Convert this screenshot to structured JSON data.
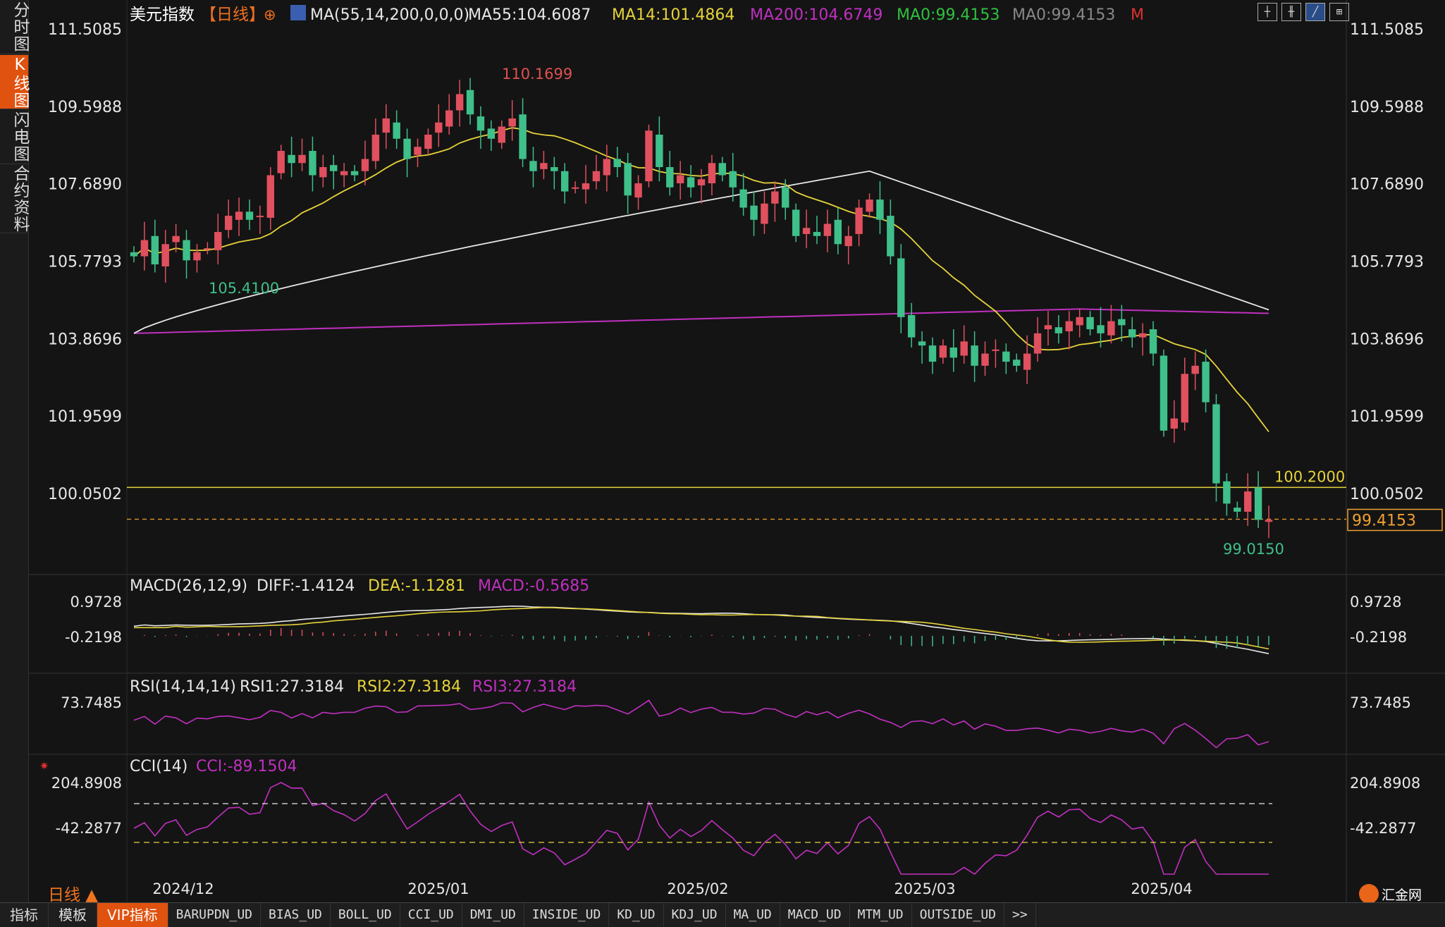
{
  "sidebar": {
    "tabs": [
      "分时图",
      "K线图",
      "闪电图",
      "合约资料"
    ],
    "active": 1
  },
  "header": {
    "name": "美元指数",
    "period_tag": "【日线】",
    "ma_spec": "MA(55,14,200,0,0,0)",
    "ma55": "MA55:104.6087",
    "ma14": "MA14:101.4864",
    "ma200": "MA200:104.6749",
    "ma0a": "MA0:99.4153",
    "ma0b": "MA0:99.4153",
    "m_label": "M"
  },
  "macd_header": {
    "label": "MACD(26,12,9)",
    "diff": "DIFF:-1.4124",
    "dea": "DEA:-1.1281",
    "macd": "MACD:-0.5685"
  },
  "rsi_header": {
    "label": "RSI(14,14,14)",
    "rsi1": "RSI1:27.3184",
    "rsi2": "RSI2:27.3184",
    "rsi3": "RSI3:27.3184"
  },
  "cci_header": {
    "label": "CCI(14)",
    "cci": "CCI:-89.1504"
  },
  "period_button": "日线 ▲",
  "logo": "汇金网",
  "bottom_tabs": [
    "指标",
    "模板",
    "VIP指标",
    "BARUPDN_UD",
    "BIAS_UD",
    "BOLL_UD",
    "CCI_UD",
    "DMI_UD",
    "INSIDE_UD",
    "KD_UD",
    "KDJ_UD",
    "MA_UD",
    "MACD_UD",
    "MTM_UD",
    "OUTSIDE_UD",
    ">>"
  ],
  "bottom_active": 2,
  "chart_data": {
    "type": "candlestick",
    "title": "美元指数 日线",
    "x_labels": [
      "2024/12",
      "2025/01",
      "2025/02",
      "2025/03",
      "2025/04"
    ],
    "price_ticks": [
      111.5085,
      109.5988,
      107.689,
      105.7793,
      103.8696,
      101.9599,
      100.0502
    ],
    "high_mark": "110.1699",
    "low_mark_dec": "105.4100",
    "low_mark": "99.0150",
    "hline_label": "100.2000",
    "hline_value": 100.2,
    "last_price": "99.4153",
    "last_value": 99.4153,
    "macd_ticks": [
      "0.9728",
      "-0.2198"
    ],
    "rsi_ticks": [
      "73.7485"
    ],
    "cci_ticks": [
      "204.8908",
      "-42.2877"
    ],
    "colors": {
      "up": "#e0505e",
      "down": "#3fbf8a",
      "ma14": "#e6d33a",
      "ma55": "#e8e8e8",
      "ma200": "#c030c0",
      "hline": "#e6d33a",
      "last": "#f0a030"
    }
  }
}
